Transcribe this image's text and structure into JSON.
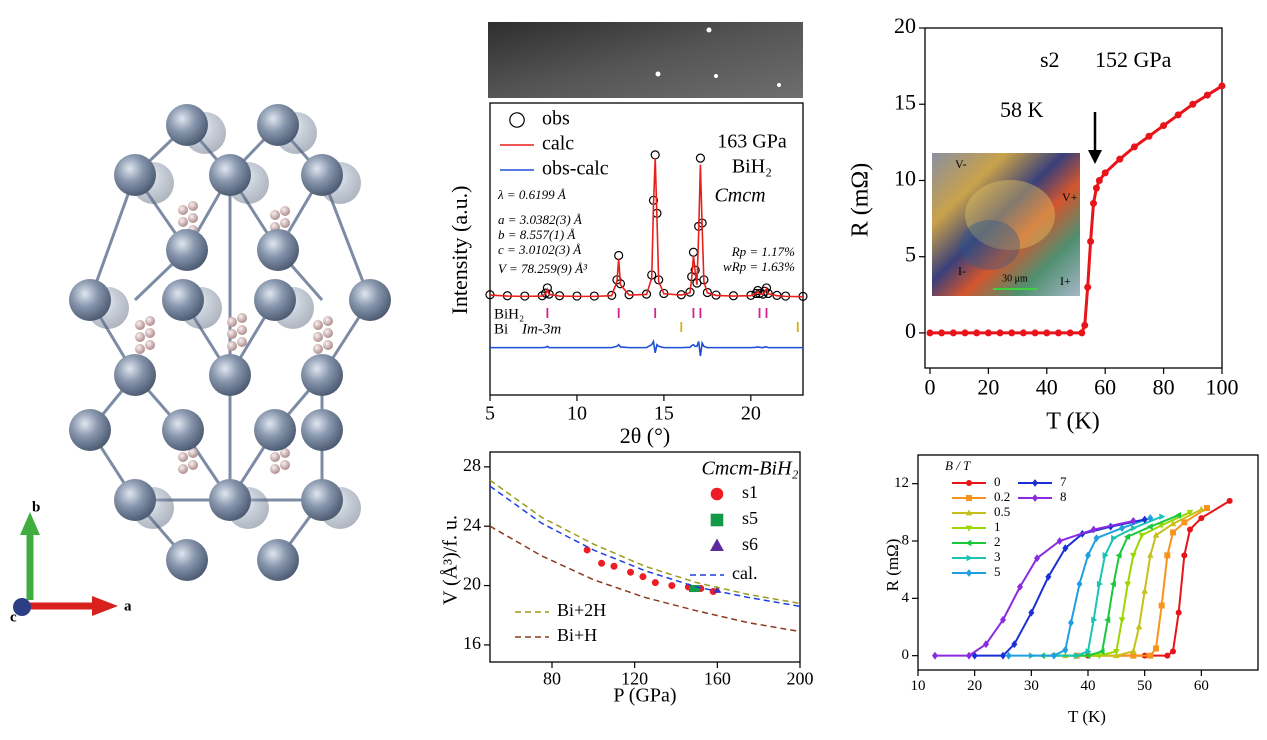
{
  "structure": {
    "axes": [
      "a",
      "b",
      "c"
    ]
  },
  "chart_data": [
    {
      "type": "line",
      "x_label": "2θ (°)",
      "y_label": "Intensity (a.u.)",
      "xlim": [
        5,
        23
      ],
      "ylim": [
        -30,
        60
      ],
      "xticks": [
        5,
        10,
        15,
        20
      ],
      "x": [
        5,
        6,
        7,
        8,
        8.2,
        8.3,
        8.4,
        9,
        10,
        11,
        12,
        12.3,
        12.4,
        12.5,
        13,
        14,
        14.3,
        14.4,
        14.5,
        14.6,
        14.7,
        15,
        16,
        16.5,
        16.6,
        16.7,
        16.8,
        16.9,
        17.0,
        17.1,
        17.2,
        17.3,
        17.5,
        18,
        19,
        20,
        20.3,
        20.4,
        20.5,
        20.7,
        20.8,
        20.9,
        21,
        21.5,
        22,
        23
      ],
      "series": [
        {
          "name": "obs",
          "color": "#000000",
          "marker": "circle-open",
          "line": false,
          "values": [
            0.9,
            0.6,
            0.5,
            0.6,
            1.4,
            3,
            1.1,
            0.6,
            0.5,
            0.5,
            0.7,
            5.5,
            13,
            4.3,
            0.9,
            1.1,
            7,
            30,
            44,
            26,
            5.5,
            1.3,
            0.9,
            1.7,
            6.5,
            14,
            8.5,
            4.5,
            22,
            43,
            23,
            5.5,
            1.6,
            0.8,
            0.6,
            0.7,
            1.3,
            2.2,
            1.3,
            1.1,
            2,
            3,
            1.3,
            0.7,
            0.5,
            0.4
          ]
        },
        {
          "name": "calc",
          "color": "#e8201c",
          "values": [
            0.8,
            0.5,
            0.4,
            0.5,
            1.2,
            2.5,
            1,
            0.5,
            0.4,
            0.4,
            0.6,
            5,
            12,
            4,
            0.8,
            1,
            6,
            28,
            43,
            25,
            5,
            1.2,
            0.8,
            1.5,
            6,
            13,
            8,
            4,
            20,
            41,
            22,
            5,
            1.5,
            0.7,
            0.5,
            0.6,
            1.2,
            2,
            1.2,
            1,
            1.8,
            2.8,
            1.2,
            0.6,
            0.4,
            0.3
          ]
        },
        {
          "name": "obs-calc",
          "color": "#1f4fd6",
          "values": [
            -15.4,
            -15.4,
            -15.4,
            -15.4,
            -15.3,
            -15,
            -15.4,
            -15.4,
            -15.4,
            -15.4,
            -15.4,
            -15,
            -14.5,
            -15.2,
            -15.4,
            -15.4,
            -14.5,
            -13.5,
            -17,
            -14.5,
            -15,
            -15.4,
            -15.4,
            -15.3,
            -14.8,
            -14.5,
            -15,
            -15,
            -13.5,
            -18,
            -14,
            -15,
            -15.4,
            -15.4,
            -15.4,
            -15.4,
            -15.3,
            -15.2,
            -15.3,
            -15.4,
            -15.2,
            -15.2,
            -15.4,
            -15.4,
            -15.4,
            -15.4
          ]
        }
      ],
      "reflections": [
        {
          "name": "BiH₂",
          "color": "#d6208f",
          "positions": [
            8.3,
            12.4,
            14.5,
            16.7,
            17.1,
            20.5,
            20.9
          ]
        },
        {
          "name": "Bi",
          "space_group": "Im-3m",
          "color": "#d4b11a",
          "positions": [
            16.0,
            22.7
          ]
        }
      ],
      "annotations": [
        "163 GPa",
        "BiH₂",
        "Cmcm",
        "λ = 0.6199 Å",
        "a = 3.0382(3) Å",
        "b = 8.557(1) Å",
        "c = 3.0102(3) Å",
        "V = 78.259(9) Å³",
        "Rp = 1.17%",
        "wRp = 1.63%"
      ]
    },
    {
      "type": "line",
      "x_label": "T (K)",
      "y_label": "R (mΩ)",
      "xlim": [
        -1.7,
        100
      ],
      "ylim": [
        -2.3,
        20
      ],
      "xticks": [
        0,
        20,
        40,
        60,
        80,
        100
      ],
      "yticks": [
        0,
        5,
        10,
        15,
        20
      ],
      "x": [
        0,
        4,
        8,
        12,
        16,
        20,
        24,
        28,
        32,
        36,
        40,
        44,
        48,
        52,
        53,
        54,
        55,
        56,
        57,
        58,
        60,
        65,
        70,
        75,
        80,
        85,
        90,
        95,
        100
      ],
      "values": [
        0,
        0,
        0,
        0,
        0,
        0,
        0,
        0,
        0,
        0,
        0,
        0,
        0,
        0,
        0.5,
        3,
        6,
        8.5,
        9.5,
        10,
        10.5,
        11.4,
        12.2,
        12.9,
        13.6,
        14.3,
        15,
        15.6,
        16.2
      ],
      "color": "#e8141a",
      "marker": "circle",
      "annotations": [
        "s2",
        "152 GPa",
        "58 K",
        "V-",
        "V+",
        "I-",
        "I+",
        "30 μm"
      ]
    },
    {
      "type": "line",
      "title": "Cmcm-BiH₂",
      "x_label": "P (GPa)",
      "y_label": "V (Å³)/f. u.",
      "xlim": [
        50,
        200
      ],
      "ylim": [
        14.85,
        29
      ],
      "xticks": [
        80,
        120,
        160,
        200
      ],
      "yticks": [
        16,
        20,
        24,
        28
      ],
      "series": [
        {
          "name": "s1",
          "color": "#ee1c25",
          "marker": "circle",
          "line": false,
          "x": [
            97,
            104,
            110,
            118,
            124,
            130,
            138,
            146,
            152,
            158
          ],
          "values": [
            22.4,
            21.5,
            21.3,
            20.9,
            20.6,
            20.2,
            20.0,
            19.9,
            19.8,
            19.6
          ]
        },
        {
          "name": "s5",
          "color": "#129a48",
          "marker": "square",
          "line": false,
          "x": [
            148,
            150
          ],
          "values": [
            19.8,
            19.8
          ]
        },
        {
          "name": "s6",
          "color": "#5b2a9c",
          "marker": "triangle",
          "line": false,
          "x": [
            160
          ],
          "values": [
            19.7
          ]
        },
        {
          "name": "cal.",
          "color": "#1f3fe0",
          "dash": true,
          "x": [
            50,
            75,
            100,
            125,
            150,
            175,
            200
          ],
          "values": [
            26.7,
            24.2,
            22.4,
            21.0,
            19.9,
            19.2,
            18.6
          ]
        },
        {
          "name": "Bi+2H",
          "color": "#9a9a1c",
          "dash": true,
          "x": [
            50,
            75,
            100,
            125,
            150,
            175,
            200
          ],
          "values": [
            27.1,
            24.6,
            22.8,
            21.3,
            20.2,
            19.4,
            18.8
          ]
        },
        {
          "name": "Bi+H",
          "color": "#8b3a1e",
          "dash": true,
          "x": [
            50,
            75,
            100,
            125,
            150,
            175,
            200
          ],
          "values": [
            24.0,
            22.0,
            20.4,
            19.2,
            18.3,
            17.5,
            16.9
          ]
        }
      ]
    },
    {
      "type": "line",
      "legend_title": "B / T",
      "x_label": "T (K)",
      "y_label": "R (mΩ)",
      "xlim": [
        10,
        70
      ],
      "ylim": [
        -1,
        14
      ],
      "xticks": [
        10,
        20,
        30,
        40,
        50,
        60
      ],
      "yticks": [
        0,
        4,
        8,
        12
      ],
      "series": [
        {
          "name": "0",
          "color": "#e8141a",
          "marker": "circle",
          "x": [
            40,
            50,
            54,
            55,
            56,
            57,
            58,
            60,
            65
          ],
          "values": [
            0,
            0,
            0,
            0.3,
            3,
            7,
            8.8,
            9.6,
            10.8
          ]
        },
        {
          "name": "0.2",
          "color": "#f7941d",
          "marker": "square",
          "x": [
            38,
            48,
            51,
            52,
            53,
            54,
            55,
            57,
            61
          ],
          "values": [
            0,
            0,
            0,
            0.5,
            3.5,
            7,
            8.6,
            9.3,
            10.3
          ]
        },
        {
          "name": "0.5",
          "color": "#c8c01a",
          "marker": "triangle",
          "x": [
            36,
            45,
            48,
            49,
            50,
            51,
            52,
            55,
            60
          ],
          "values": [
            0,
            0,
            0.3,
            2,
            4.5,
            7,
            8.4,
            9.2,
            10.2
          ]
        },
        {
          "name": "1",
          "color": "#9bd600",
          "marker": "triangle-down",
          "x": [
            34,
            42,
            45,
            46,
            47,
            48,
            49.5,
            53,
            58
          ],
          "values": [
            0,
            0,
            0.3,
            2.5,
            5,
            7,
            8.4,
            9.1,
            10
          ]
        },
        {
          "name": "2",
          "color": "#19c93c",
          "marker": "triangle-left",
          "x": [
            32,
            40,
            42.5,
            43.5,
            44.5,
            45.5,
            47,
            51,
            56
          ],
          "values": [
            0,
            0,
            0.3,
            2.5,
            5,
            7,
            8.3,
            9,
            9.8
          ]
        },
        {
          "name": "3",
          "color": "#19c4b4",
          "marker": "triangle-right",
          "x": [
            30,
            38,
            40,
            41,
            42,
            43,
            44.5,
            48,
            53
          ],
          "values": [
            0,
            0,
            0.3,
            2.5,
            5,
            7,
            8.2,
            8.9,
            9.7
          ]
        },
        {
          "name": "5",
          "color": "#1f9fe0",
          "marker": "diamond",
          "x": [
            26,
            34,
            36,
            37,
            38.5,
            40,
            41.5,
            46,
            51
          ],
          "values": [
            0,
            0,
            0.4,
            2.3,
            5,
            7,
            8.2,
            8.9,
            9.6
          ]
        },
        {
          "name": "7",
          "color": "#1b2fd6",
          "marker": "diamond",
          "x": [
            20,
            25,
            27,
            30,
            33,
            36,
            39,
            44,
            50
          ],
          "values": [
            0,
            0,
            0.8,
            3,
            5.5,
            7.5,
            8.5,
            9,
            9.5
          ]
        },
        {
          "name": "8",
          "color": "#8a2be2",
          "marker": "diamond",
          "x": [
            13,
            19,
            22,
            25,
            28,
            31,
            35,
            41,
            48
          ],
          "values": [
            0,
            0,
            0.8,
            2.5,
            4.8,
            6.8,
            8,
            8.8,
            9.4
          ]
        }
      ]
    }
  ]
}
